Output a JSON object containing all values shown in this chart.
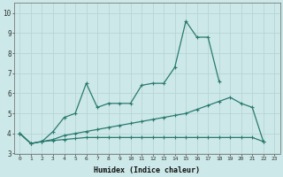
{
  "xlabel": "Humidex (Indice chaleur)",
  "x_values": [
    0,
    1,
    2,
    3,
    4,
    5,
    6,
    7,
    8,
    9,
    10,
    11,
    12,
    13,
    14,
    15,
    16,
    17,
    18,
    19,
    20,
    21,
    22,
    23
  ],
  "line1": [
    4.0,
    3.5,
    3.6,
    4.1,
    4.8,
    5.0,
    6.5,
    5.3,
    5.5,
    5.5,
    5.5,
    6.4,
    6.5,
    6.5,
    7.3,
    9.6,
    8.8,
    8.8,
    6.6,
    null,
    null,
    null,
    null,
    null
  ],
  "line2": [
    4.0,
    3.5,
    3.6,
    3.7,
    3.9,
    4.0,
    4.1,
    4.2,
    4.3,
    4.4,
    4.5,
    4.6,
    4.7,
    4.8,
    4.9,
    5.0,
    5.2,
    5.4,
    5.6,
    5.8,
    5.5,
    5.3,
    3.6,
    null
  ],
  "line3": [
    4.0,
    3.5,
    3.6,
    3.65,
    3.7,
    3.75,
    3.8,
    3.8,
    3.8,
    3.8,
    3.8,
    3.8,
    3.8,
    3.8,
    3.8,
    3.8,
    3.8,
    3.8,
    3.8,
    3.8,
    3.8,
    3.8,
    3.6,
    null
  ],
  "line_color": "#2a7a6e",
  "bg_color": "#cce8e8",
  "grid_color": "#b8d4d4",
  "ylim": [
    3.0,
    10.5
  ],
  "yticks": [
    3,
    4,
    5,
    6,
    7,
    8,
    9,
    10
  ],
  "xlim": [
    -0.5,
    23.5
  ]
}
